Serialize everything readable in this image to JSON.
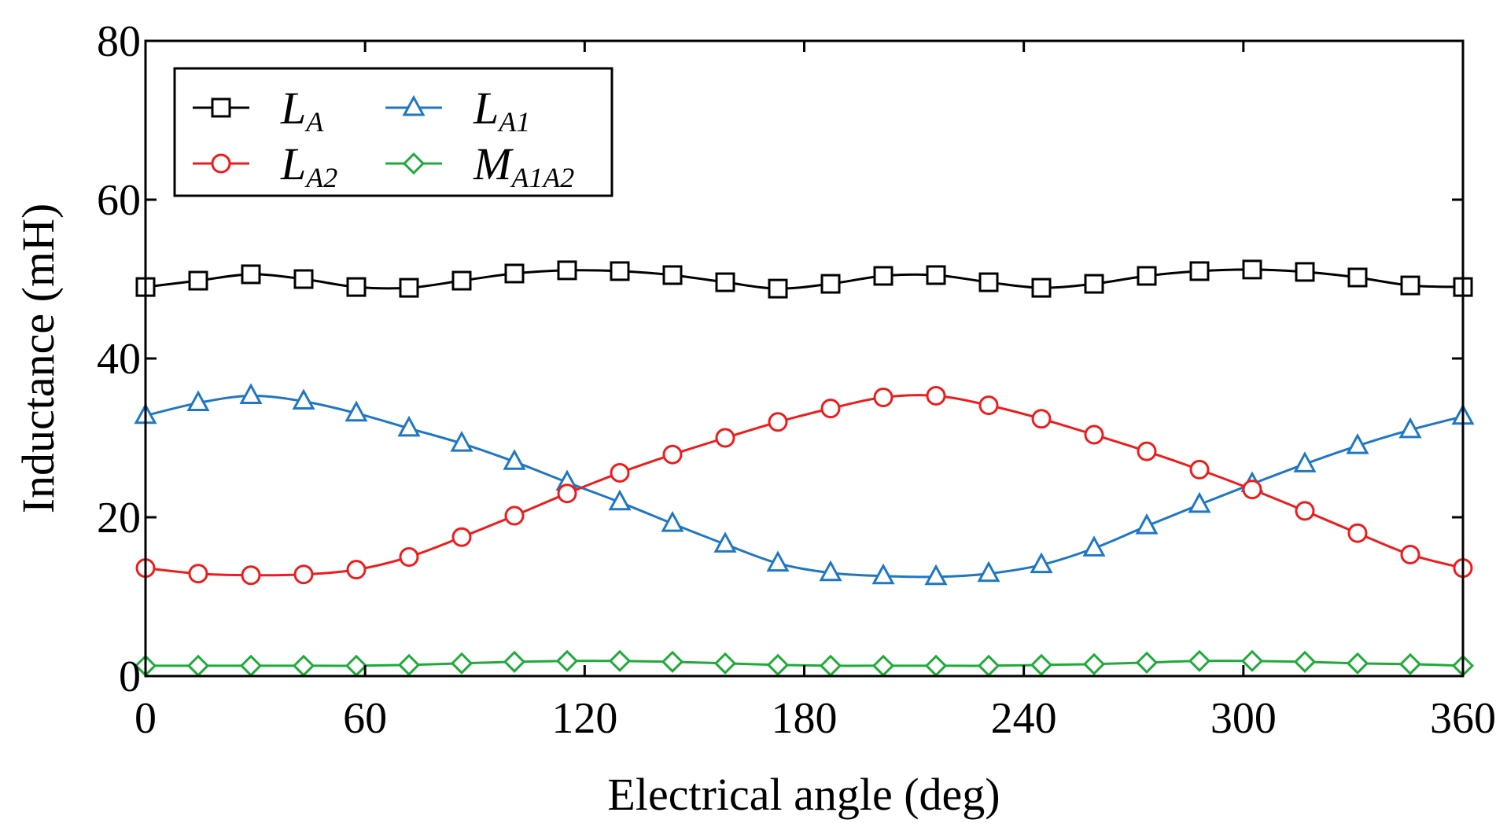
{
  "chart_data": {
    "type": "line",
    "title": "",
    "xlabel": "Electrical angle (deg)",
    "ylabel": "Inductance (mH)",
    "xlim": [
      0,
      360
    ],
    "ylim": [
      0,
      80
    ],
    "xticks": [
      0,
      60,
      120,
      180,
      240,
      300,
      360
    ],
    "yticks": [
      0,
      20,
      40,
      60,
      80
    ],
    "grid": false,
    "legend_position": "top-left",
    "x": [
      0,
      14.4,
      28.8,
      43.2,
      57.6,
      72,
      86.4,
      100.8,
      115.2,
      129.6,
      144,
      158.4,
      172.8,
      187.2,
      201.6,
      216,
      230.4,
      244.8,
      259.2,
      273.6,
      288,
      302.4,
      316.8,
      331.2,
      345.6,
      360
    ],
    "series": [
      {
        "name": "L_A",
        "label_main": "L",
        "label_sub": "A",
        "color": "#000000",
        "marker": "square",
        "values": [
          49.0,
          49.8,
          50.6,
          50.0,
          49.0,
          48.9,
          49.8,
          50.7,
          51.1,
          51.0,
          50.5,
          49.6,
          48.8,
          49.4,
          50.4,
          50.5,
          49.6,
          48.9,
          49.4,
          50.4,
          51.0,
          51.2,
          50.9,
          50.2,
          49.2,
          49.0
        ]
      },
      {
        "name": "L_A1",
        "label_main": "L",
        "label_sub": "A1",
        "color": "#1f77c4",
        "marker": "triangle",
        "values": [
          32.8,
          34.4,
          35.3,
          34.6,
          33.1,
          31.2,
          29.3,
          27.0,
          24.4,
          21.9,
          19.2,
          16.6,
          14.2,
          13.0,
          12.6,
          12.5,
          12.9,
          14.0,
          16.1,
          18.9,
          21.6,
          24.2,
          26.7,
          29.0,
          31.0,
          32.7
        ]
      },
      {
        "name": "L_A2",
        "label_main": "L",
        "label_sub": "A2",
        "color": "#ee1c1c",
        "marker": "circle",
        "values": [
          13.6,
          12.9,
          12.7,
          12.8,
          13.4,
          15.0,
          17.5,
          20.2,
          23.0,
          25.6,
          27.9,
          30.0,
          32.0,
          33.7,
          35.1,
          35.3,
          34.1,
          32.4,
          30.4,
          28.3,
          26.0,
          23.5,
          20.8,
          18.0,
          15.3,
          13.6
        ]
      },
      {
        "name": "M_A1A2",
        "label_main": "M",
        "label_sub": "A1A2",
        "color": "#1faa3a",
        "marker": "diamond",
        "values": [
          1.3,
          1.3,
          1.3,
          1.3,
          1.3,
          1.4,
          1.6,
          1.8,
          1.9,
          1.9,
          1.8,
          1.6,
          1.4,
          1.3,
          1.3,
          1.3,
          1.3,
          1.4,
          1.5,
          1.7,
          1.9,
          1.9,
          1.8,
          1.6,
          1.5,
          1.3
        ]
      }
    ]
  }
}
